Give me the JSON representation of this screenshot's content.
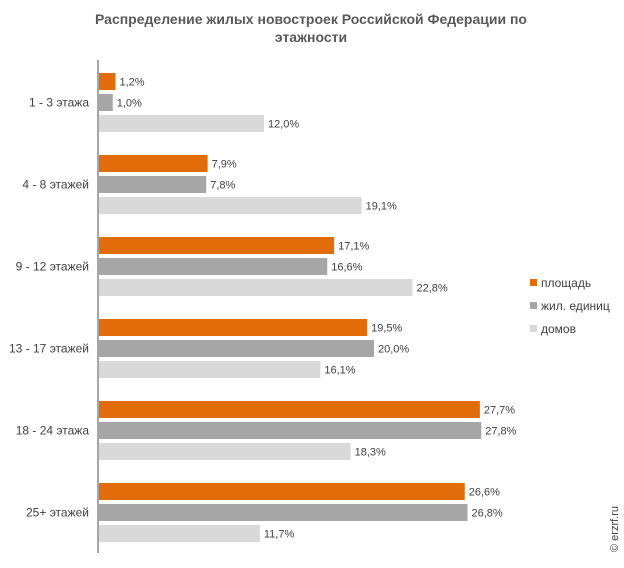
{
  "chart_data": {
    "type": "bar",
    "orientation": "horizontal",
    "title_line1": "Распределение жилых новостроек Российской Федерации по",
    "title_line2": "этажности",
    "categories": [
      "1 - 3 этажа",
      "4 - 8 этажей",
      "9 - 12 этажей",
      "13 - 17 этажей",
      "18 - 24 этажа",
      "25+ этажей"
    ],
    "series": [
      {
        "name": "площадь",
        "color": "#e36c0a",
        "values": [
          1.2,
          7.9,
          17.1,
          19.5,
          27.7,
          26.6
        ],
        "labels": [
          "1,2%",
          "7,9%",
          "17,1%",
          "19,5%",
          "27,7%",
          "26,6%"
        ]
      },
      {
        "name": "жил. единиц",
        "color": "#a6a6a6",
        "values": [
          1.0,
          7.8,
          16.6,
          20.0,
          27.8,
          26.8
        ],
        "labels": [
          "1,0%",
          "7,8%",
          "16,6%",
          "20,0%",
          "27,8%",
          "26,8%"
        ]
      },
      {
        "name": "домов",
        "color": "#d9d9d9",
        "values": [
          12.0,
          19.1,
          22.8,
          16.1,
          18.3,
          11.7
        ],
        "labels": [
          "12,0%",
          "19,1%",
          "22,8%",
          "16,1%",
          "18,3%",
          "11,7%"
        ]
      }
    ],
    "xlim": [
      0,
      30
    ],
    "grid": false,
    "legend_position": "right"
  },
  "source": "© erzrf.ru"
}
